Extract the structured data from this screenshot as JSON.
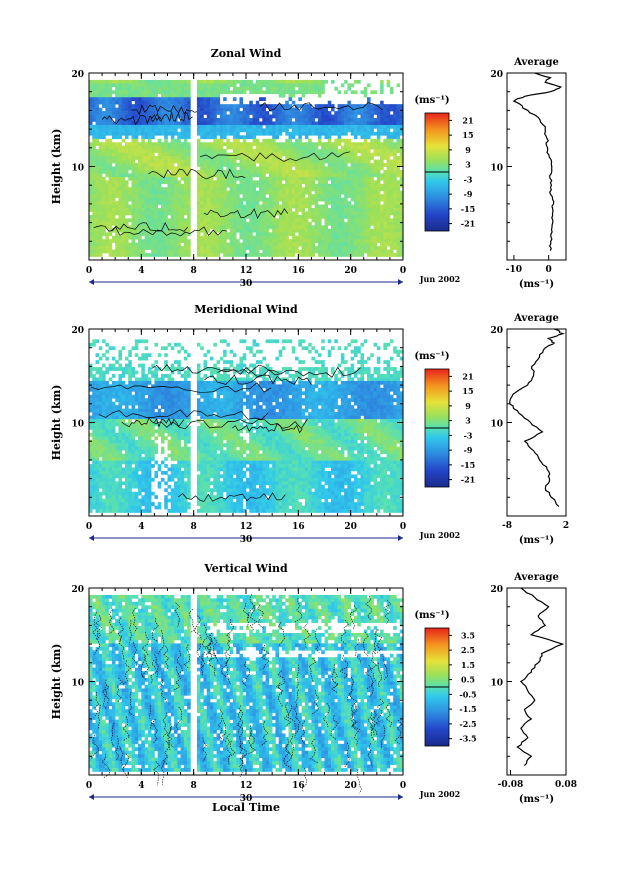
{
  "figure": {
    "date_label": "Jun 2002",
    "day_label": "30",
    "xlabel_bottom": "Local Time",
    "unit_label": "(ms⁻¹)"
  },
  "chart_data": [
    {
      "type": "heatmap",
      "title": "Zonal Wind",
      "xlabel": "",
      "ylabel": "Height (km)",
      "x_range": [
        0,
        24
      ],
      "x_ticks": [
        "0",
        "4",
        "8",
        "12",
        "16",
        "20",
        "0"
      ],
      "y_range": [
        0,
        20
      ],
      "y_ticks": [
        "10",
        "20"
      ],
      "colorbar": {
        "unit": "(ms⁻¹)",
        "ticks": [
          "21",
          "15",
          "9",
          "3",
          "-3",
          "-9",
          "-15",
          "-21"
        ],
        "range": [
          -24,
          24
        ]
      },
      "average": {
        "title": "Average",
        "xlabel": "(ms⁻¹)",
        "x_ticks": [
          "-10",
          "0"
        ],
        "x_range": [
          -12,
          5
        ],
        "y_ticks": [
          "10",
          "20"
        ],
        "profile": [
          [
            1,
            0.5
          ],
          [
            2,
            0.6
          ],
          [
            3,
            1.0
          ],
          [
            4,
            1.2
          ],
          [
            5,
            1.1
          ],
          [
            6,
            1.4
          ],
          [
            7,
            0.6
          ],
          [
            8,
            0.8
          ],
          [
            9,
            0.3
          ],
          [
            10,
            0.9
          ],
          [
            11,
            0.2
          ],
          [
            12,
            -0.3
          ],
          [
            13,
            -0.5
          ],
          [
            14,
            -1.0
          ],
          [
            15,
            -2.5
          ],
          [
            16,
            -6
          ],
          [
            17,
            -10
          ],
          [
            17.5,
            -7
          ],
          [
            18,
            0.5
          ],
          [
            18.5,
            3.5
          ],
          [
            19,
            -1
          ],
          [
            19.5,
            0.5
          ],
          [
            20,
            -4
          ]
        ]
      },
      "zero_contour": true
    },
    {
      "type": "heatmap",
      "title": "Meridional Wind",
      "xlabel": "",
      "ylabel": "Height (km)",
      "x_range": [
        0,
        24
      ],
      "x_ticks": [
        "0",
        "4",
        "8",
        "12",
        "16",
        "20",
        "0"
      ],
      "y_range": [
        0,
        20
      ],
      "y_ticks": [
        "10",
        "20"
      ],
      "colorbar": {
        "unit": "(ms⁻¹)",
        "ticks": [
          "21",
          "15",
          "9",
          "3",
          "-3",
          "-9",
          "-15",
          "-21"
        ],
        "range": [
          -24,
          24
        ]
      },
      "average": {
        "title": "Average",
        "xlabel": "(ms⁻¹)",
        "x_ticks": [
          "-8",
          "2"
        ],
        "x_range": [
          -8,
          2
        ],
        "y_ticks": [
          "10",
          "20"
        ],
        "profile": [
          [
            1,
            0.8
          ],
          [
            2,
            -0.5
          ],
          [
            3,
            -1.5
          ],
          [
            4,
            -0.8
          ],
          [
            5,
            -1.2
          ],
          [
            6,
            -2.5
          ],
          [
            7,
            -3.5
          ],
          [
            8,
            -5
          ],
          [
            9,
            -2
          ],
          [
            10,
            -4
          ],
          [
            11,
            -6
          ],
          [
            12,
            -7.5
          ],
          [
            13,
            -7
          ],
          [
            14,
            -4.5
          ],
          [
            15,
            -3.5
          ],
          [
            16,
            -3.8
          ],
          [
            17,
            -2.5
          ],
          [
            18,
            -1.5
          ],
          [
            18.5,
            0
          ],
          [
            19,
            -1
          ],
          [
            19.5,
            1.5
          ],
          [
            20,
            0
          ]
        ]
      },
      "zero_contour": true
    },
    {
      "type": "heatmap",
      "title": "Vertical Wind",
      "xlabel": "Local Time",
      "ylabel": "Height (km)",
      "x_range": [
        0,
        24
      ],
      "x_ticks": [
        "0",
        "4",
        "8",
        "12",
        "16",
        "20",
        "0"
      ],
      "y_range": [
        0,
        20
      ],
      "y_ticks": [
        "10",
        "20"
      ],
      "colorbar": {
        "unit": "(ms⁻¹)",
        "ticks": [
          "3.5",
          "2.5",
          "1.5",
          "0.5",
          "-0.5",
          "-1.5",
          "-2.5",
          "-3.5"
        ],
        "range": [
          -4,
          4
        ]
      },
      "average": {
        "title": "Average",
        "xlabel": "(ms⁻¹)",
        "x_ticks": [
          "-0.08",
          "0.08"
        ],
        "x_range": [
          -0.09,
          0.08
        ],
        "y_ticks": [
          "10",
          "20"
        ],
        "profile": [
          [
            1,
            -0.04
          ],
          [
            2,
            -0.02
          ],
          [
            3,
            -0.06
          ],
          [
            4,
            -0.03
          ],
          [
            5,
            -0.05
          ],
          [
            6,
            -0.02
          ],
          [
            7,
            -0.04
          ],
          [
            8,
            -0.01
          ],
          [
            9,
            -0.03
          ],
          [
            10,
            -0.05
          ],
          [
            11,
            -0.02
          ],
          [
            12,
            0.0
          ],
          [
            13,
            0.01
          ],
          [
            14,
            0.07
          ],
          [
            15,
            -0.02
          ],
          [
            16,
            0.02
          ],
          [
            17,
            0.0
          ],
          [
            18,
            0.03
          ],
          [
            19,
            -0.01
          ],
          [
            20,
            -0.05
          ]
        ]
      },
      "zero_contour": true
    }
  ]
}
